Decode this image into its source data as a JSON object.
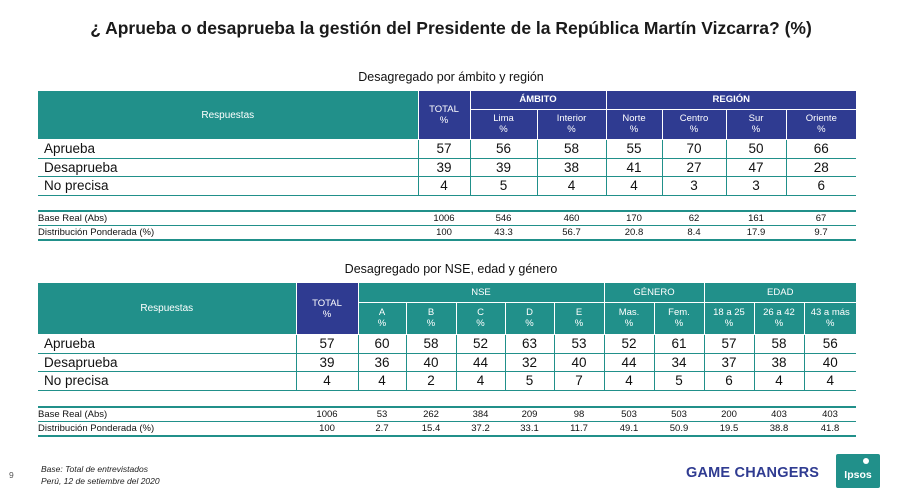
{
  "title": "¿ Aprueba o desaprueba la gestión del Presidente de la República Martín Vizcarra? (%)",
  "table1": {
    "subtitle": "Desagregado por ámbito y región",
    "respuestas_label": "Respuestas",
    "total_label": "TOTAL",
    "pct": "%",
    "group1": "ÁMBITO",
    "group2": "REGIÓN",
    "columns": [
      "Lima",
      "Interior",
      "Norte",
      "Centro",
      "Sur",
      "Oriente"
    ],
    "rows": [
      {
        "label": "Aprueba",
        "values": [
          "57",
          "56",
          "58",
          "55",
          "70",
          "50",
          "66"
        ]
      },
      {
        "label": "Desaprueba",
        "values": [
          "39",
          "39",
          "38",
          "41",
          "27",
          "47",
          "28"
        ]
      },
      {
        "label": "No precisa",
        "values": [
          "4",
          "5",
          "4",
          "4",
          "3",
          "3",
          "6"
        ]
      }
    ],
    "base": [
      {
        "label": "Base Real (Abs)",
        "values": [
          "1006",
          "546",
          "460",
          "170",
          "62",
          "161",
          "67"
        ]
      },
      {
        "label": "Distribución Ponderada (%)",
        "values": [
          "100",
          "43.3",
          "56.7",
          "20.8",
          "8.4",
          "17.9",
          "9.7"
        ]
      }
    ]
  },
  "table2": {
    "subtitle": "Desagregado por NSE, edad y género",
    "respuestas_label": "Respuestas",
    "total_label": "TOTAL",
    "pct": "%",
    "group1": "NSE",
    "group2": "GÉNERO",
    "group3": "EDAD",
    "columns": [
      "A",
      "B",
      "C",
      "D",
      "E",
      "Mas.",
      "Fem.",
      "18 a 25",
      "26 a 42",
      "43 a más"
    ],
    "rows": [
      {
        "label": "Aprueba",
        "values": [
          "57",
          "60",
          "58",
          "52",
          "63",
          "53",
          "52",
          "61",
          "57",
          "58",
          "56"
        ]
      },
      {
        "label": "Desaprueba",
        "values": [
          "39",
          "36",
          "40",
          "44",
          "32",
          "40",
          "44",
          "34",
          "37",
          "38",
          "40"
        ]
      },
      {
        "label": "No precisa",
        "values": [
          "4",
          "4",
          "2",
          "4",
          "5",
          "7",
          "4",
          "5",
          "6",
          "4",
          "4"
        ]
      }
    ],
    "base": [
      {
        "label": "Base Real (Abs)",
        "values": [
          "1006",
          "53",
          "262",
          "384",
          "209",
          "98",
          "503",
          "503",
          "200",
          "403",
          "403"
        ]
      },
      {
        "label": "Distribución Ponderada (%)",
        "values": [
          "100",
          "2.7",
          "15.4",
          "37.2",
          "33.1",
          "11.7",
          "49.1",
          "50.9",
          "19.5",
          "38.8",
          "41.8"
        ]
      }
    ]
  },
  "footer": {
    "page_number": "9",
    "note1": "Base: Total de entrevistados",
    "note2": "Perú, 12 de setiembre del 2020",
    "tagline": "GAME CHANGERS",
    "logo": "Ipsos"
  },
  "colors": {
    "teal": "#21908a",
    "navy": "#2f3b91"
  }
}
